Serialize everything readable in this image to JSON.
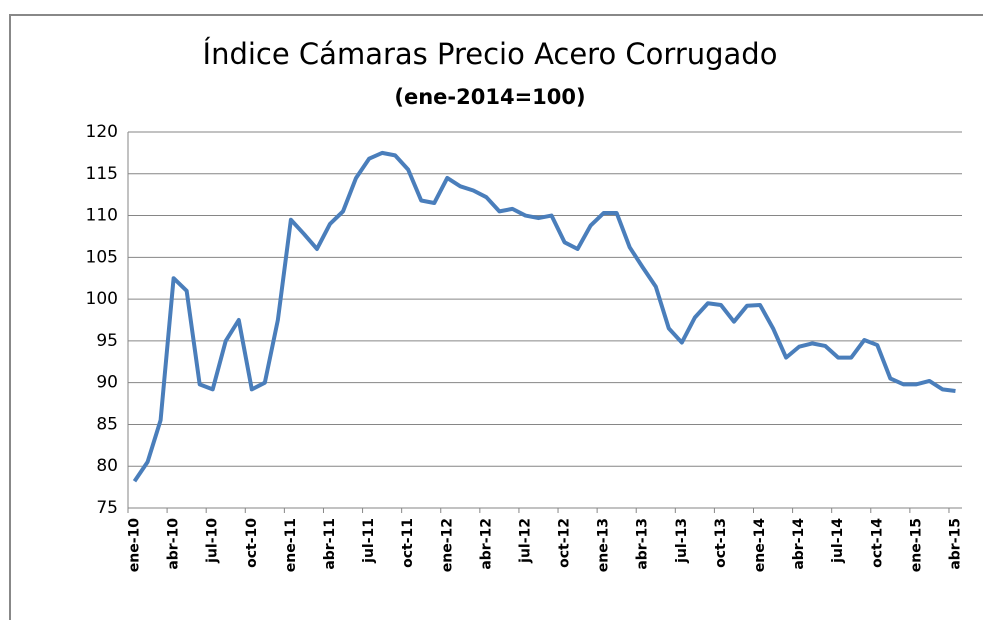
{
  "chart_data": {
    "type": "line",
    "title": "Índice Cámaras Precio Acero Corrugado",
    "subtitle": "(ene-2014=100)",
    "categories": [
      "ene-10",
      null,
      null,
      "abr-10",
      null,
      null,
      "jul-10",
      null,
      null,
      "oct-10",
      null,
      null,
      "ene-11",
      null,
      null,
      "abr-11",
      null,
      null,
      "jul-11",
      null,
      null,
      "oct-11",
      null,
      null,
      "ene-12",
      null,
      null,
      "abr-12",
      null,
      null,
      "jul-12",
      null,
      null,
      "oct-12",
      null,
      null,
      "ene-13",
      null,
      null,
      "abr-13",
      null,
      null,
      "jul-13",
      null,
      null,
      "oct-13",
      null,
      null,
      "ene-14",
      null,
      null,
      "abr-14",
      null,
      null,
      "jul-14",
      null,
      null,
      "oct-14",
      null,
      null,
      "ene-15",
      null,
      null,
      "abr-15"
    ],
    "series": [
      {
        "color": "#4a7ebb",
        "values": [
          78.2,
          80.5,
          85.5,
          102.5,
          101,
          89.8,
          89.2,
          95,
          97.5,
          89.2,
          90,
          97.5,
          109.5,
          107.8,
          106,
          109,
          110.5,
          114.5,
          116.8,
          117.5,
          117.2,
          115.5,
          111.8,
          111.5,
          114.5,
          113.5,
          113,
          112.2,
          110.5,
          110.8,
          110,
          109.7,
          110,
          106.8,
          106,
          108.8,
          110.3,
          110.3,
          106.2,
          103.8,
          101.5,
          96.5,
          94.8,
          97.8,
          99.5,
          99.3,
          97.3,
          99.2,
          99.3,
          96.5,
          93,
          94.3,
          94.7,
          94.4,
          93,
          93,
          95.1,
          94.5,
          90.5,
          89.8,
          89.8,
          90.2,
          89.2,
          89
        ]
      }
    ],
    "ylim": [
      75,
      120
    ],
    "yticks": [
      75,
      80,
      85,
      90,
      95,
      100,
      105,
      110,
      115,
      120
    ],
    "grid": true
  }
}
